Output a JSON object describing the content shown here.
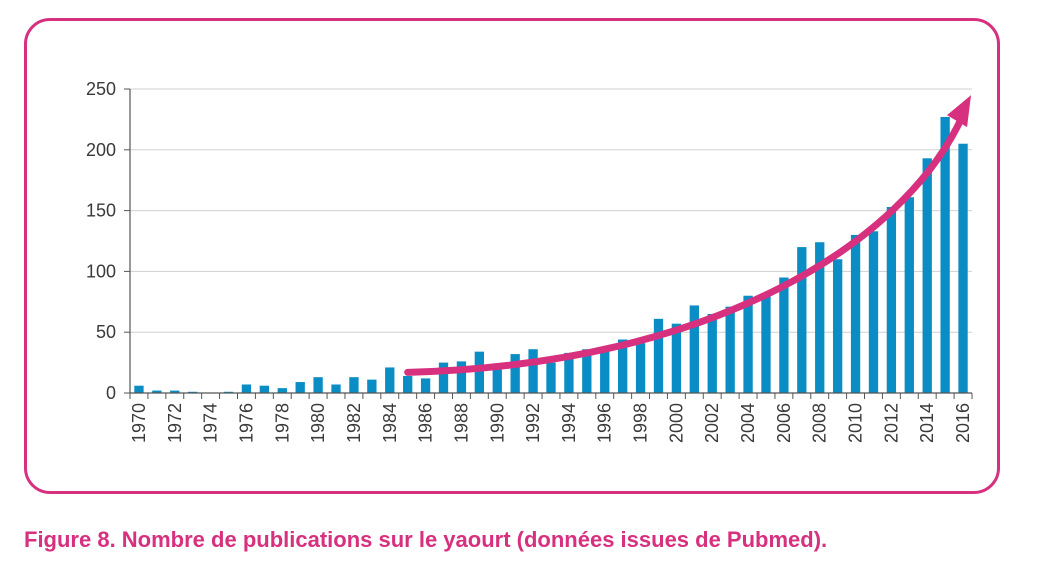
{
  "caption": "Figure 8. Nombre de publications sur le yaourt (données issues de Pubmed).",
  "colors": {
    "frame": "#d6307f",
    "bar": "#0a8dc4",
    "trend_arrow": "#d6307f",
    "grid": "#d0d0d0"
  },
  "chart_data": {
    "type": "bar",
    "categories": [
      "1970",
      "1971",
      "1972",
      "1973",
      "1974",
      "1975",
      "1976",
      "1977",
      "1978",
      "1979",
      "1980",
      "1981",
      "1982",
      "1983",
      "1984",
      "1985",
      "1986",
      "1987",
      "1988",
      "1989",
      "1990",
      "1991",
      "1992",
      "1993",
      "1994",
      "1995",
      "1996",
      "1997",
      "1998",
      "1999",
      "2000",
      "2001",
      "2002",
      "2003",
      "2004",
      "2005",
      "2006",
      "2007",
      "2008",
      "2009",
      "2010",
      "2011",
      "2012",
      "2013",
      "2014",
      "2015",
      "2016"
    ],
    "tick_labels": [
      "1970",
      "1972",
      "1974",
      "1976",
      "1978",
      "1980",
      "1982",
      "1984",
      "1986",
      "1988",
      "1990",
      "1992",
      "1994",
      "1996",
      "1998",
      "2000",
      "2002",
      "2004",
      "2006",
      "2008",
      "2010",
      "2012",
      "2014",
      "2016"
    ],
    "values": [
      6,
      2,
      2,
      1,
      0,
      1,
      7,
      6,
      4,
      9,
      13,
      7,
      13,
      11,
      21,
      14,
      12,
      25,
      26,
      34,
      23,
      32,
      36,
      25,
      33,
      36,
      37,
      44,
      41,
      61,
      57,
      72,
      65,
      71,
      80,
      82,
      95,
      120,
      124,
      110,
      130,
      133,
      153,
      161,
      193,
      227,
      205
    ],
    "ylim": [
      0,
      250
    ],
    "yticks": [
      0,
      50,
      100,
      150,
      200,
      250
    ],
    "grid": true,
    "annotations": [
      {
        "type": "arrow",
        "description": "trend-arrow",
        "from_year": "1985",
        "to_year": "2016"
      }
    ],
    "title": "",
    "xlabel": "",
    "ylabel": ""
  }
}
